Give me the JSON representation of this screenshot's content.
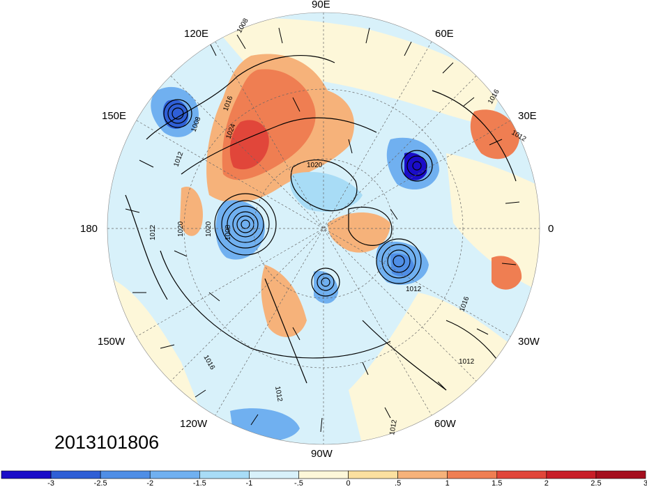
{
  "date_stamp": "2013101806",
  "longitude_labels": {
    "e90": "90E",
    "e120": "120E",
    "e60": "60E",
    "e150": "150E",
    "e30": "30E",
    "lon180": "180",
    "lon0": "0",
    "w150": "150W",
    "w30": "30W",
    "w120": "120W",
    "w60": "60W",
    "w90": "90W"
  },
  "isobar_labels": [
    "1008",
    "1016",
    "1008",
    "1012",
    "1024",
    "1020",
    "1016",
    "1012",
    "1020",
    "1020",
    "1008",
    "1012",
    "1012",
    "1016",
    "1016",
    "1012",
    "1012",
    "1012"
  ],
  "colorbar": {
    "tick_labels": [
      "-3",
      "-2.5",
      "-2",
      "-1.5",
      "-1",
      "-.5",
      "0",
      ".5",
      "1",
      "1.5",
      "2",
      "2.5",
      "3"
    ],
    "colors": [
      "#1a0dc8",
      "#2f5fd6",
      "#4f8ee6",
      "#70b0f0",
      "#a8dcf6",
      "#d8f1fa",
      "#fdf7d9",
      "#fbe0a0",
      "#f6b27a",
      "#ef7e52",
      "#e1463a",
      "#c81e28",
      "#a50f1e"
    ]
  }
}
